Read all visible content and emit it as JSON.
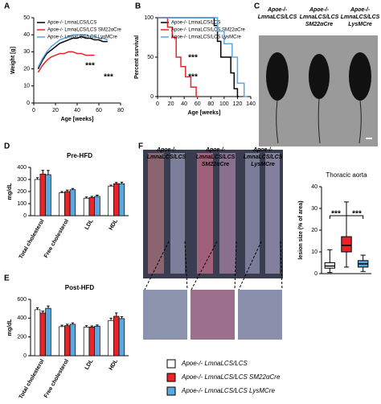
{
  "chart_data": [
    {
      "type": "line",
      "panel": "A",
      "ylabel": "Weight [g]",
      "xlabel": "Age [weeks]",
      "xlim": [
        0,
        80
      ],
      "xticks": [
        0,
        20,
        40,
        60,
        80
      ],
      "ylim": [
        0,
        50
      ],
      "yticks": [
        0,
        10,
        20,
        30,
        40,
        50
      ],
      "annotations": [
        "***",
        "***"
      ],
      "series": [
        {
          "name": "Apoe-/- LmnaLCS/LCS",
          "color": "#000000",
          "x": [
            4,
            8,
            12,
            16,
            20,
            24,
            28,
            32,
            36,
            40,
            44,
            48,
            52,
            56,
            60,
            64,
            68
          ],
          "values": [
            20,
            25,
            29,
            31,
            33,
            35,
            36,
            37,
            38,
            38,
            39,
            38,
            38,
            37,
            37,
            36,
            36
          ]
        },
        {
          "name": "Apoe-/- LmnaLCS/LCS SM22αCre",
          "color": "#e8232a",
          "x": [
            4,
            8,
            12,
            16,
            20,
            24,
            28,
            32,
            36,
            40,
            44,
            48,
            52,
            56
          ],
          "values": [
            18,
            22,
            25,
            27,
            28,
            29,
            29,
            30,
            30,
            29,
            29,
            28,
            28,
            28
          ]
        },
        {
          "name": "Apoe-/- LmnaLCS/LCS LysMCre",
          "color": "#5ba7e0",
          "x": [
            4,
            8,
            12,
            16,
            20,
            24,
            28,
            32,
            36,
            40,
            44,
            48,
            52,
            56,
            60,
            64,
            68
          ],
          "values": [
            21,
            26,
            30,
            33,
            35,
            37,
            38,
            39,
            40,
            40,
            40,
            40,
            39,
            39,
            38,
            38,
            37
          ]
        }
      ]
    },
    {
      "type": "line",
      "panel": "B",
      "ylabel": "Percent survival",
      "xlabel": "Age [weeks]",
      "xlim": [
        0,
        140
      ],
      "xticks": [
        0,
        20,
        40,
        60,
        80,
        100,
        120,
        140
      ],
      "ylim": [
        0,
        100
      ],
      "yticks": [
        0,
        50,
        100
      ],
      "annotations": [
        "***",
        "***"
      ],
      "series": [
        {
          "name": "Apoe-/- LmnaLCS/LCS",
          "color": "#000000",
          "x": [
            0,
            85,
            85,
            90,
            90,
            95,
            95,
            110,
            110,
            115,
            115,
            120,
            120,
            122
          ],
          "values": [
            100,
            100,
            90,
            90,
            70,
            70,
            50,
            50,
            30,
            30,
            10,
            10,
            0,
            0
          ]
        },
        {
          "name": "Apoe-/- LmnaLCS/LCS SM22αCre",
          "color": "#e8232a",
          "x": [
            0,
            15,
            15,
            22,
            22,
            28,
            28,
            35,
            35,
            42,
            42,
            50,
            50,
            58,
            58,
            62
          ],
          "values": [
            100,
            100,
            88,
            88,
            75,
            75,
            50,
            50,
            38,
            38,
            25,
            25,
            12,
            12,
            0,
            0
          ]
        },
        {
          "name": "Apoe-/- LmnaLCS/LCS LysMCre",
          "color": "#5ba7e0",
          "x": [
            0,
            90,
            90,
            100,
            100,
            112,
            112,
            120,
            120,
            130,
            130,
            135
          ],
          "values": [
            100,
            100,
            83,
            83,
            67,
            67,
            50,
            50,
            17,
            17,
            0,
            0
          ]
        }
      ]
    },
    {
      "type": "bar",
      "panel": "D",
      "title": "Pre-HFD",
      "ylabel": "mg/dL",
      "ylim": [
        0,
        400
      ],
      "yticks": [
        0,
        100,
        200,
        300,
        400
      ],
      "categories": [
        "Total cholesterol",
        "Free cholesterol",
        "LDL",
        "HDL"
      ],
      "series": [
        {
          "name": "Apoe-/- LmnaLCS/LCS",
          "color": "#ffffff",
          "values": [
            300,
            190,
            145,
            245
          ],
          "errors": [
            15,
            10,
            10,
            8
          ]
        },
        {
          "name": "Apoe-/- LmnaLCS/LCS SM22αCre",
          "color": "#e8232a",
          "values": [
            345,
            200,
            150,
            265
          ],
          "errors": [
            30,
            12,
            10,
            10
          ]
        },
        {
          "name": "Apoe-/- LmnaLCS/LCS LysMCre",
          "color": "#5ba7e0",
          "values": [
            340,
            215,
            160,
            265
          ],
          "errors": [
            35,
            10,
            10,
            12
          ]
        }
      ]
    },
    {
      "type": "bar",
      "panel": "E",
      "title": "Post-HFD",
      "ylabel": "mg/dL",
      "ylim": [
        0,
        600
      ],
      "yticks": [
        0,
        200,
        400,
        600
      ],
      "categories": [
        "Total cholesterol",
        "Free cholesterol",
        "LDL",
        "HDL"
      ],
      "series": [
        {
          "color": "#ffffff",
          "values": [
            490,
            310,
            305,
            375
          ],
          "errors": [
            20,
            15,
            15,
            25
          ]
        },
        {
          "color": "#e8232a",
          "values": [
            455,
            320,
            305,
            420
          ],
          "errors": [
            20,
            15,
            12,
            35
          ]
        },
        {
          "color": "#5ba7e0",
          "values": [
            505,
            335,
            315,
            395
          ],
          "errors": [
            25,
            15,
            12,
            20
          ]
        }
      ]
    },
    {
      "type": "box",
      "title": "Thoracic aorta",
      "ylabel": "lesion size (% of area)",
      "ylim": [
        0,
        40
      ],
      "yticks": [
        0,
        10,
        20,
        30,
        40
      ],
      "annotations": [
        "***",
        "***"
      ],
      "boxes": [
        {
          "color": "#ffffff",
          "min": 0.5,
          "q1": 2.5,
          "median": 3.5,
          "q3": 5,
          "max": 11
        },
        {
          "color": "#e8232a",
          "min": 3,
          "q1": 10,
          "median": 13,
          "q3": 17,
          "max": 33
        },
        {
          "color": "#5ba7e0",
          "min": 1,
          "q1": 3,
          "median": 4.5,
          "q3": 6,
          "max": 8.5
        }
      ]
    }
  ],
  "panel_c": {
    "panel": "C",
    "labels": [
      [
        "Apoe-/-",
        "LmnaLCS/LCS"
      ],
      [
        "Apoe-/-",
        "LmnaLCS/LCS",
        "SM22αCre"
      ],
      [
        "Apoe-/-",
        "LmnaLCS/LCS",
        "LysMCre"
      ]
    ]
  },
  "panel_f": {
    "panel": "F",
    "labels": [
      [
        "Apoe-/-",
        "LmnaLCS/LCS"
      ],
      [
        "Apoe-/-",
        "LmnaLCS/LCS",
        "SM22αCre"
      ],
      [
        "Apoe-/-",
        "LmnaLCS/LCS",
        "LysMCre"
      ]
    ]
  }
}
